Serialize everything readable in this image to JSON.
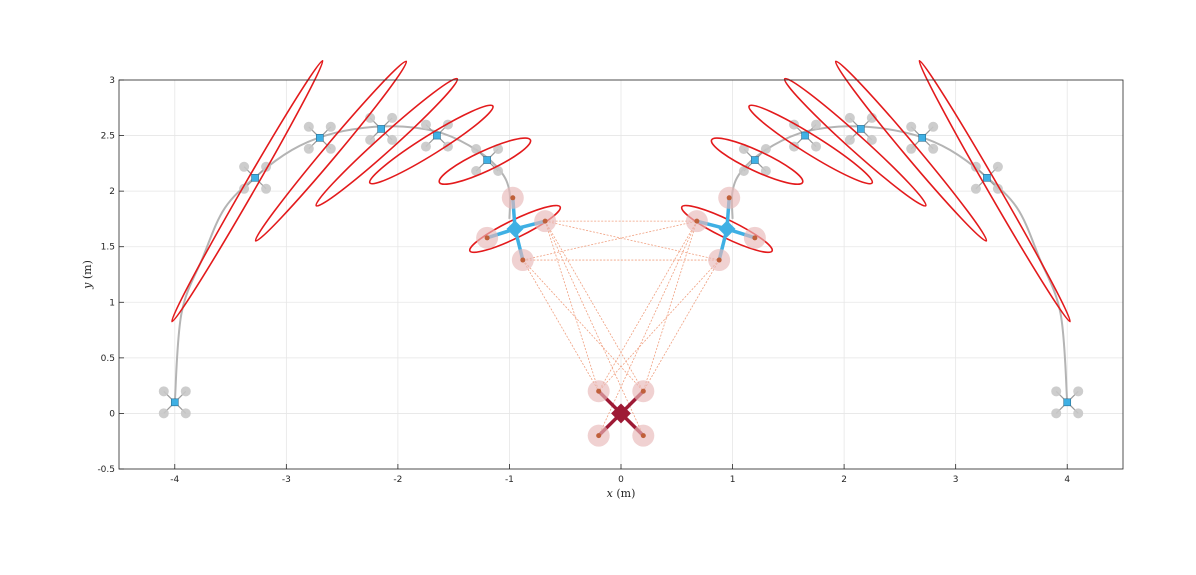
{
  "chart_data": {
    "type": "scatter",
    "title": "",
    "xlabel": {
      "var": "x",
      "unit": "(m)"
    },
    "ylabel": {
      "var": "y",
      "unit": "(m)"
    },
    "xlim": [
      -4.5,
      4.5
    ],
    "ylim": [
      -0.5,
      3
    ],
    "xticks": [
      -4,
      -3,
      -2,
      -1,
      0,
      1,
      2,
      3,
      4
    ],
    "yticks": [
      -0.5,
      0,
      0.5,
      1,
      1.5,
      2,
      2.5,
      3
    ],
    "xtick_labels": [
      "-4",
      "-3",
      "-2",
      "-1",
      "0",
      "1",
      "2",
      "3",
      "4"
    ],
    "ytick_labels": [
      "-0.5",
      "0",
      "0.5",
      "1",
      "1.5",
      "2",
      "2.5",
      "3"
    ],
    "grid": true,
    "colors": {
      "trajectory": "#b4b4b4",
      "ellipse": "#e31a1c",
      "follower_body": "#3fb0e4",
      "leader_body": "#9e1a35",
      "rotor_ghost": "#c8c8c8",
      "rotor_active": "#e8b8b8",
      "link": "#f0a080"
    },
    "trajectories": [
      {
        "name": "left",
        "points": [
          [
            -4,
            0.1
          ],
          [
            -3.94,
            0.9
          ],
          [
            -3.75,
            1.4
          ],
          [
            -3.55,
            1.85
          ],
          [
            -3.25,
            2.15
          ],
          [
            -2.95,
            2.37
          ],
          [
            -2.65,
            2.5
          ],
          [
            -2.3,
            2.57
          ],
          [
            -1.95,
            2.58
          ],
          [
            -1.6,
            2.52
          ],
          [
            -1.28,
            2.36
          ],
          [
            -1.08,
            2.18
          ],
          [
            -1.0,
            2.0
          ],
          [
            -1.0,
            1.75
          ]
        ]
      },
      {
        "name": "right",
        "points": [
          [
            4,
            0.1
          ],
          [
            3.94,
            0.9
          ],
          [
            3.75,
            1.4
          ],
          [
            3.55,
            1.85
          ],
          [
            3.25,
            2.15
          ],
          [
            2.95,
            2.37
          ],
          [
            2.65,
            2.5
          ],
          [
            2.3,
            2.57
          ],
          [
            1.95,
            2.58
          ],
          [
            1.6,
            2.52
          ],
          [
            1.28,
            2.36
          ],
          [
            1.08,
            2.18
          ],
          [
            1.0,
            2.0
          ],
          [
            1.0,
            1.75
          ]
        ]
      }
    ],
    "ghost_drones": [
      [
        -3.28,
        2.12
      ],
      [
        -2.7,
        2.48
      ],
      [
        -2.15,
        2.56
      ],
      [
        -1.65,
        2.5
      ],
      [
        -1.2,
        2.28
      ],
      [
        3.28,
        2.12
      ],
      [
        2.7,
        2.48
      ],
      [
        2.15,
        2.56
      ],
      [
        1.65,
        2.5
      ],
      [
        1.2,
        2.28
      ],
      [
        -4.0,
        0.1
      ],
      [
        4.0,
        0.1
      ]
    ],
    "ellipses": [
      {
        "center": [
          -3.35,
          2.0
        ],
        "semi_major": 1.35,
        "semi_minor": 0.05,
        "angle_deg": 60
      },
      {
        "center": [
          -2.6,
          2.36
        ],
        "semi_major": 1.05,
        "semi_minor": 0.06,
        "angle_deg": 50
      },
      {
        "center": [
          -2.1,
          2.44
        ],
        "semi_major": 0.85,
        "semi_minor": 0.07,
        "angle_deg": 42
      },
      {
        "center": [
          -1.7,
          2.42
        ],
        "semi_major": 0.65,
        "semi_minor": 0.085,
        "angle_deg": 32
      },
      {
        "center": [
          -1.22,
          2.27
        ],
        "semi_major": 0.45,
        "semi_minor": 0.09,
        "angle_deg": 25
      },
      {
        "center": [
          -0.95,
          1.66
        ],
        "semi_major": 0.45,
        "semi_minor": 0.08,
        "angle_deg": 26
      },
      {
        "center": [
          3.35,
          2.0
        ],
        "semi_major": 1.35,
        "semi_minor": 0.05,
        "angle_deg": -60
      },
      {
        "center": [
          2.6,
          2.36
        ],
        "semi_major": 1.05,
        "semi_minor": 0.06,
        "angle_deg": -50
      },
      {
        "center": [
          2.1,
          2.44
        ],
        "semi_major": 0.85,
        "semi_minor": 0.07,
        "angle_deg": -42
      },
      {
        "center": [
          1.7,
          2.42
        ],
        "semi_major": 0.65,
        "semi_minor": 0.085,
        "angle_deg": -32
      },
      {
        "center": [
          1.22,
          2.27
        ],
        "semi_major": 0.45,
        "semi_minor": 0.09,
        "angle_deg": -25
      },
      {
        "center": [
          0.95,
          1.66
        ],
        "semi_major": 0.45,
        "semi_minor": 0.08,
        "angle_deg": -26
      }
    ],
    "follower_drones": [
      {
        "center": [
          -0.95,
          1.66
        ],
        "rotors": [
          [
            -0.97,
            1.94
          ],
          [
            -0.68,
            1.73
          ],
          [
            -1.2,
            1.58
          ],
          [
            -0.88,
            1.38
          ]
        ]
      },
      {
        "center": [
          0.95,
          1.66
        ],
        "rotors": [
          [
            0.97,
            1.94
          ],
          [
            0.68,
            1.73
          ],
          [
            1.2,
            1.58
          ],
          [
            0.88,
            1.38
          ]
        ]
      }
    ],
    "leader_drone": {
      "center": [
        0,
        0.0
      ],
      "rotors": [
        [
          -0.2,
          0.2
        ],
        [
          0.2,
          0.2
        ],
        [
          -0.2,
          -0.2
        ],
        [
          0.2,
          -0.2
        ]
      ]
    },
    "links": [
      [
        [
          -0.68,
          1.73
        ],
        [
          0.68,
          1.73
        ]
      ],
      [
        [
          -0.88,
          1.38
        ],
        [
          0.88,
          1.38
        ]
      ],
      [
        [
          -0.68,
          1.73
        ],
        [
          0.88,
          1.38
        ]
      ],
      [
        [
          -0.88,
          1.38
        ],
        [
          0.68,
          1.73
        ]
      ],
      [
        [
          -0.68,
          1.73
        ],
        [
          -0.2,
          0.2
        ]
      ],
      [
        [
          -0.68,
          1.73
        ],
        [
          0.2,
          0.2
        ]
      ],
      [
        [
          -0.88,
          1.38
        ],
        [
          -0.2,
          0.2
        ]
      ],
      [
        [
          -0.88,
          1.38
        ],
        [
          0.2,
          0.2
        ]
      ],
      [
        [
          0.68,
          1.73
        ],
        [
          -0.2,
          0.2
        ]
      ],
      [
        [
          0.68,
          1.73
        ],
        [
          0.2,
          0.2
        ]
      ],
      [
        [
          0.88,
          1.38
        ],
        [
          -0.2,
          0.2
        ]
      ],
      [
        [
          0.88,
          1.38
        ],
        [
          0.2,
          0.2
        ]
      ],
      [
        [
          -0.68,
          1.73
        ],
        [
          0.2,
          -0.2
        ]
      ],
      [
        [
          0.68,
          1.73
        ],
        [
          -0.2,
          -0.2
        ]
      ]
    ]
  }
}
